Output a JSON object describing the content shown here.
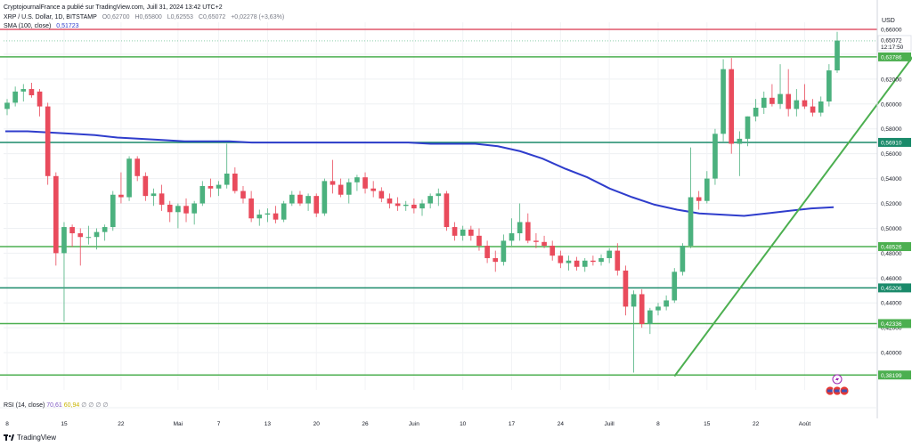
{
  "header": {
    "publisher_line": "CryptojournalFrance a publié sur TradingView.com, Juill 31, 2024 13:42 UTC+2",
    "symbol_line": "XRP / U.S. Dollar, 1D, BITSTAMP",
    "ohlc": {
      "o": "O0,62700",
      "h": "H0,65800",
      "l": "L0,62553",
      "c": "C0,65072",
      "chg": "+0,02278 (+3,63%)"
    },
    "sma_label": "SMA (100, close)",
    "sma_value": "0,51723"
  },
  "rsi": {
    "label": "RSI (14, close)",
    "value1": "70,61",
    "value2": "60,94",
    "zeros": [
      "∅",
      "∅",
      "∅",
      "∅"
    ]
  },
  "footer": {
    "brand": "TradingView"
  },
  "axis": {
    "currency": "USD"
  },
  "colors": {
    "up": "#4bb17e",
    "down": "#e94b5c",
    "sma": "#2f3dcc",
    "level": "#4caf50",
    "dark_level": "#1a8a6a",
    "resistance": "#e0566a"
  },
  "chart_data": {
    "type": "candlestick",
    "ylim": [
      0.37,
      0.66
    ],
    "y_ticks": [
      "0,40000",
      "0,42000",
      "0,44000",
      "0,46000",
      "0,48000",
      "0,50000",
      "0,52000",
      "0,54000",
      "0,56000",
      "0,58000",
      "0,60000",
      "0,62000",
      "0,64000",
      "0,66000"
    ],
    "x_ticks": [
      "8",
      "15",
      "22",
      "Mai",
      "7",
      "13",
      "20",
      "26",
      "Juin",
      "10",
      "17",
      "24",
      "Juill",
      "8",
      "15",
      "22",
      "Août"
    ],
    "levels": [
      {
        "value": 0.63786,
        "label": "0,63786",
        "style": "green"
      },
      {
        "value": 0.5691,
        "label": "0,56910",
        "style": "dark"
      },
      {
        "value": 0.48526,
        "label": "0,48526",
        "style": "green"
      },
      {
        "value": 0.45206,
        "label": "0,45206",
        "style": "dark"
      },
      {
        "value": 0.42336,
        "label": "0,42336",
        "style": "green"
      },
      {
        "value": 0.38199,
        "label": "0,38199",
        "style": "green"
      }
    ],
    "resistance": 0.66,
    "last_price": {
      "value": 0.65072,
      "label": "0,65072",
      "countdown": "12:17:50"
    },
    "sma_100": [
      0.578,
      0.578,
      0.577,
      0.576,
      0.575,
      0.573,
      0.572,
      0.571,
      0.57,
      0.57,
      0.57,
      0.569,
      0.569,
      0.569,
      0.569,
      0.569,
      0.569,
      0.569,
      0.569,
      0.568,
      0.568,
      0.568,
      0.566,
      0.562,
      0.556,
      0.548,
      0.541,
      0.532,
      0.525,
      0.519,
      0.515,
      0.512,
      0.511,
      0.51,
      0.512,
      0.514,
      0.516,
      0.517
    ],
    "candles": [
      {
        "o": 0.596,
        "h": 0.604,
        "l": 0.591,
        "c": 0.601
      },
      {
        "o": 0.601,
        "h": 0.614,
        "l": 0.598,
        "c": 0.61
      },
      {
        "o": 0.61,
        "h": 0.616,
        "l": 0.602,
        "c": 0.612
      },
      {
        "o": 0.612,
        "h": 0.617,
        "l": 0.605,
        "c": 0.607
      },
      {
        "o": 0.61,
        "h": 0.612,
        "l": 0.59,
        "c": 0.598
      },
      {
        "o": 0.598,
        "h": 0.601,
        "l": 0.535,
        "c": 0.542
      },
      {
        "o": 0.542,
        "h": 0.545,
        "l": 0.47,
        "c": 0.48
      },
      {
        "o": 0.48,
        "h": 0.505,
        "l": 0.425,
        "c": 0.501
      },
      {
        "o": 0.501,
        "h": 0.503,
        "l": 0.485,
        "c": 0.496
      },
      {
        "o": 0.496,
        "h": 0.5,
        "l": 0.47,
        "c": 0.493
      },
      {
        "o": 0.493,
        "h": 0.502,
        "l": 0.487,
        "c": 0.493
      },
      {
        "o": 0.493,
        "h": 0.5,
        "l": 0.483,
        "c": 0.497
      },
      {
        "o": 0.497,
        "h": 0.503,
        "l": 0.49,
        "c": 0.501
      },
      {
        "o": 0.501,
        "h": 0.53,
        "l": 0.498,
        "c": 0.527
      },
      {
        "o": 0.527,
        "h": 0.545,
        "l": 0.52,
        "c": 0.525
      },
      {
        "o": 0.525,
        "h": 0.558,
        "l": 0.522,
        "c": 0.556
      },
      {
        "o": 0.556,
        "h": 0.558,
        "l": 0.538,
        "c": 0.542
      },
      {
        "o": 0.542,
        "h": 0.545,
        "l": 0.522,
        "c": 0.526
      },
      {
        "o": 0.526,
        "h": 0.532,
        "l": 0.518,
        "c": 0.528
      },
      {
        "o": 0.528,
        "h": 0.535,
        "l": 0.514,
        "c": 0.519
      },
      {
        "o": 0.519,
        "h": 0.522,
        "l": 0.505,
        "c": 0.513
      },
      {
        "o": 0.513,
        "h": 0.52,
        "l": 0.5,
        "c": 0.518
      },
      {
        "o": 0.518,
        "h": 0.524,
        "l": 0.505,
        "c": 0.512
      },
      {
        "o": 0.512,
        "h": 0.522,
        "l": 0.503,
        "c": 0.52
      },
      {
        "o": 0.52,
        "h": 0.538,
        "l": 0.518,
        "c": 0.534
      },
      {
        "o": 0.534,
        "h": 0.54,
        "l": 0.525,
        "c": 0.532
      },
      {
        "o": 0.532,
        "h": 0.538,
        "l": 0.526,
        "c": 0.535
      },
      {
        "o": 0.535,
        "h": 0.568,
        "l": 0.532,
        "c": 0.544
      },
      {
        "o": 0.544,
        "h": 0.549,
        "l": 0.528,
        "c": 0.53
      },
      {
        "o": 0.53,
        "h": 0.534,
        "l": 0.52,
        "c": 0.524
      },
      {
        "o": 0.524,
        "h": 0.53,
        "l": 0.505,
        "c": 0.508
      },
      {
        "o": 0.508,
        "h": 0.515,
        "l": 0.502,
        "c": 0.511
      },
      {
        "o": 0.511,
        "h": 0.516,
        "l": 0.505,
        "c": 0.512
      },
      {
        "o": 0.512,
        "h": 0.518,
        "l": 0.504,
        "c": 0.507
      },
      {
        "o": 0.507,
        "h": 0.522,
        "l": 0.505,
        "c": 0.52
      },
      {
        "o": 0.52,
        "h": 0.53,
        "l": 0.518,
        "c": 0.527
      },
      {
        "o": 0.527,
        "h": 0.53,
        "l": 0.518,
        "c": 0.52
      },
      {
        "o": 0.52,
        "h": 0.528,
        "l": 0.514,
        "c": 0.526
      },
      {
        "o": 0.526,
        "h": 0.528,
        "l": 0.509,
        "c": 0.512
      },
      {
        "o": 0.512,
        "h": 0.54,
        "l": 0.51,
        "c": 0.538
      },
      {
        "o": 0.538,
        "h": 0.555,
        "l": 0.528,
        "c": 0.535
      },
      {
        "o": 0.535,
        "h": 0.54,
        "l": 0.525,
        "c": 0.527
      },
      {
        "o": 0.527,
        "h": 0.54,
        "l": 0.52,
        "c": 0.537
      },
      {
        "o": 0.537,
        "h": 0.543,
        "l": 0.53,
        "c": 0.541
      },
      {
        "o": 0.541,
        "h": 0.545,
        "l": 0.528,
        "c": 0.532
      },
      {
        "o": 0.532,
        "h": 0.538,
        "l": 0.525,
        "c": 0.53
      },
      {
        "o": 0.53,
        "h": 0.533,
        "l": 0.521,
        "c": 0.524
      },
      {
        "o": 0.524,
        "h": 0.528,
        "l": 0.516,
        "c": 0.52
      },
      {
        "o": 0.52,
        "h": 0.525,
        "l": 0.514,
        "c": 0.518
      },
      {
        "o": 0.518,
        "h": 0.522,
        "l": 0.514,
        "c": 0.519
      },
      {
        "o": 0.519,
        "h": 0.524,
        "l": 0.512,
        "c": 0.516
      },
      {
        "o": 0.516,
        "h": 0.523,
        "l": 0.51,
        "c": 0.52
      },
      {
        "o": 0.52,
        "h": 0.528,
        "l": 0.516,
        "c": 0.526
      },
      {
        "o": 0.526,
        "h": 0.532,
        "l": 0.518,
        "c": 0.528
      },
      {
        "o": 0.528,
        "h": 0.53,
        "l": 0.498,
        "c": 0.501
      },
      {
        "o": 0.501,
        "h": 0.505,
        "l": 0.49,
        "c": 0.494
      },
      {
        "o": 0.494,
        "h": 0.502,
        "l": 0.49,
        "c": 0.499
      },
      {
        "o": 0.499,
        "h": 0.502,
        "l": 0.49,
        "c": 0.494
      },
      {
        "o": 0.494,
        "h": 0.5,
        "l": 0.482,
        "c": 0.486
      },
      {
        "o": 0.486,
        "h": 0.49,
        "l": 0.472,
        "c": 0.476
      },
      {
        "o": 0.476,
        "h": 0.482,
        "l": 0.465,
        "c": 0.473
      },
      {
        "o": 0.473,
        "h": 0.495,
        "l": 0.47,
        "c": 0.49
      },
      {
        "o": 0.49,
        "h": 0.508,
        "l": 0.486,
        "c": 0.496
      },
      {
        "o": 0.496,
        "h": 0.52,
        "l": 0.49,
        "c": 0.505
      },
      {
        "o": 0.505,
        "h": 0.512,
        "l": 0.488,
        "c": 0.49
      },
      {
        "o": 0.49,
        "h": 0.496,
        "l": 0.484,
        "c": 0.489
      },
      {
        "o": 0.489,
        "h": 0.494,
        "l": 0.484,
        "c": 0.486
      },
      {
        "o": 0.486,
        "h": 0.49,
        "l": 0.474,
        "c": 0.478
      },
      {
        "o": 0.478,
        "h": 0.482,
        "l": 0.468,
        "c": 0.472
      },
      {
        "o": 0.472,
        "h": 0.478,
        "l": 0.466,
        "c": 0.474
      },
      {
        "o": 0.474,
        "h": 0.477,
        "l": 0.466,
        "c": 0.469
      },
      {
        "o": 0.469,
        "h": 0.476,
        "l": 0.465,
        "c": 0.474
      },
      {
        "o": 0.474,
        "h": 0.478,
        "l": 0.47,
        "c": 0.473
      },
      {
        "o": 0.473,
        "h": 0.479,
        "l": 0.47,
        "c": 0.476
      },
      {
        "o": 0.476,
        "h": 0.484,
        "l": 0.472,
        "c": 0.482
      },
      {
        "o": 0.482,
        "h": 0.488,
        "l": 0.462,
        "c": 0.466
      },
      {
        "o": 0.466,
        "h": 0.47,
        "l": 0.43,
        "c": 0.437
      },
      {
        "o": 0.437,
        "h": 0.45,
        "l": 0.384,
        "c": 0.447
      },
      {
        "o": 0.447,
        "h": 0.451,
        "l": 0.42,
        "c": 0.423
      },
      {
        "o": 0.423,
        "h": 0.436,
        "l": 0.415,
        "c": 0.434
      },
      {
        "o": 0.434,
        "h": 0.44,
        "l": 0.43,
        "c": 0.437
      },
      {
        "o": 0.437,
        "h": 0.446,
        "l": 0.434,
        "c": 0.442
      },
      {
        "o": 0.442,
        "h": 0.468,
        "l": 0.44,
        "c": 0.465
      },
      {
        "o": 0.465,
        "h": 0.488,
        "l": 0.462,
        "c": 0.486
      },
      {
        "o": 0.486,
        "h": 0.565,
        "l": 0.484,
        "c": 0.525
      },
      {
        "o": 0.525,
        "h": 0.53,
        "l": 0.515,
        "c": 0.522
      },
      {
        "o": 0.522,
        "h": 0.546,
        "l": 0.52,
        "c": 0.54
      },
      {
        "o": 0.54,
        "h": 0.58,
        "l": 0.535,
        "c": 0.576
      },
      {
        "o": 0.576,
        "h": 0.636,
        "l": 0.57,
        "c": 0.628
      },
      {
        "o": 0.628,
        "h": 0.637,
        "l": 0.56,
        "c": 0.568
      },
      {
        "o": 0.568,
        "h": 0.578,
        "l": 0.542,
        "c": 0.572
      },
      {
        "o": 0.572,
        "h": 0.59,
        "l": 0.566,
        "c": 0.59
      },
      {
        "o": 0.59,
        "h": 0.604,
        "l": 0.586,
        "c": 0.597
      },
      {
        "o": 0.597,
        "h": 0.61,
        "l": 0.592,
        "c": 0.605
      },
      {
        "o": 0.605,
        "h": 0.616,
        "l": 0.598,
        "c": 0.6
      },
      {
        "o": 0.6,
        "h": 0.632,
        "l": 0.596,
        "c": 0.608
      },
      {
        "o": 0.608,
        "h": 0.628,
        "l": 0.59,
        "c": 0.596
      },
      {
        "o": 0.596,
        "h": 0.612,
        "l": 0.59,
        "c": 0.603
      },
      {
        "o": 0.603,
        "h": 0.616,
        "l": 0.596,
        "c": 0.598
      },
      {
        "o": 0.598,
        "h": 0.604,
        "l": 0.59,
        "c": 0.593
      },
      {
        "o": 0.593,
        "h": 0.606,
        "l": 0.59,
        "c": 0.602
      },
      {
        "o": 0.602,
        "h": 0.632,
        "l": 0.598,
        "c": 0.627
      },
      {
        "o": 0.627,
        "h": 0.658,
        "l": 0.625,
        "c": 0.651
      }
    ],
    "trendline": [
      {
        "i": 82,
        "v": 0.381
      },
      {
        "i": 108,
        "v": 0.638
      }
    ],
    "x_tick_index": [
      0,
      7,
      14,
      21,
      26,
      32,
      38,
      44,
      50,
      56,
      62,
      68,
      74,
      80,
      86,
      92,
      98
    ]
  }
}
